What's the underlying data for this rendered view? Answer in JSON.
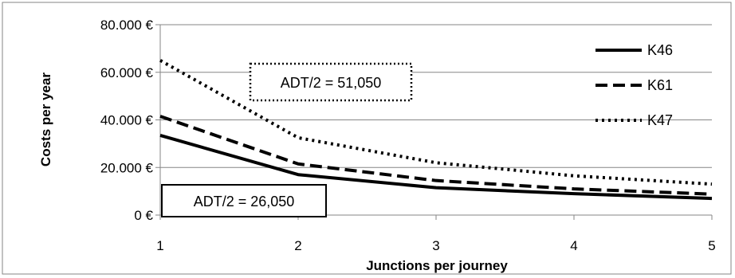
{
  "chart_data": {
    "type": "line",
    "x": [
      1,
      2,
      3,
      4,
      5
    ],
    "xlabel": "Junctions per journey",
    "ylabel": "Costs per year",
    "xlim": [
      1,
      5
    ],
    "ylim": [
      0,
      80000
    ],
    "x_ticks": [
      "1",
      "2",
      "3",
      "4",
      "5"
    ],
    "y_ticks": [
      0,
      20000,
      40000,
      60000,
      80000
    ],
    "y_tick_labels": [
      "0 €",
      "20.000 €",
      "40.000 €",
      "60.000 €",
      "80.000 €"
    ],
    "grid": "horizontal",
    "legend_position": "top-right",
    "series": [
      {
        "name": "K46",
        "values": [
          33500,
          17000,
          11500,
          9000,
          7000
        ],
        "line_style": "solid",
        "color": "#000000"
      },
      {
        "name": "K61",
        "values": [
          41500,
          21500,
          14500,
          11000,
          8800
        ],
        "line_style": "dashed",
        "color": "#000000"
      },
      {
        "name": "K47",
        "values": [
          65000,
          32500,
          22000,
          16500,
          13000
        ],
        "line_style": "dotted",
        "color": "#000000"
      }
    ],
    "annotations": [
      {
        "text": "ADT/2 = 51,050",
        "border": "dotted"
      },
      {
        "text": "ADT/2 = 26,050",
        "border": "solid"
      }
    ]
  }
}
